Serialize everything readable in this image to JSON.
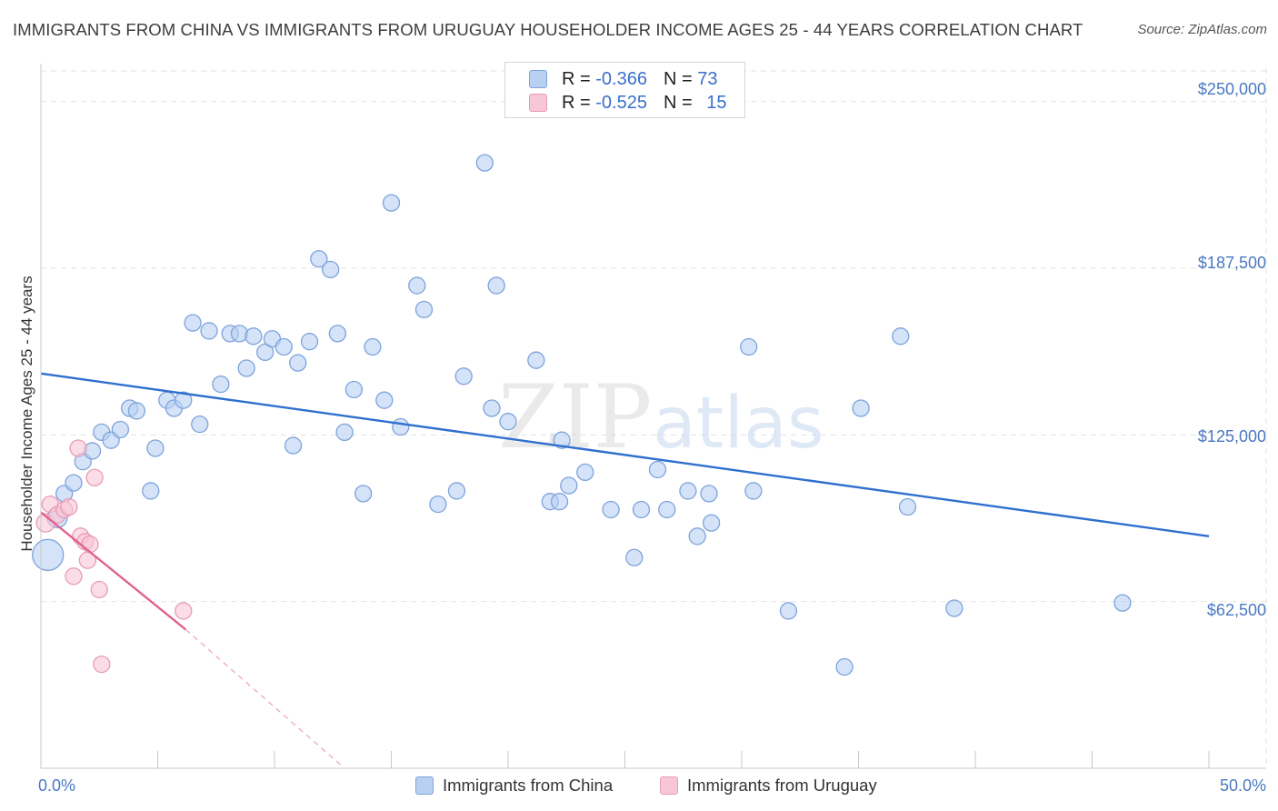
{
  "title": "IMMIGRANTS FROM CHINA VS IMMIGRANTS FROM URUGUAY HOUSEHOLDER INCOME AGES 25 - 44 YEARS CORRELATION CHART",
  "source": "Source: ZipAtlas.com",
  "watermark": {
    "zip": "ZIP",
    "atlas": "atlas"
  },
  "legend": {
    "china": {
      "r_label": "R =",
      "r_value": "-0.366",
      "n_label": "N =",
      "n_value": "73"
    },
    "uruguay": {
      "r_label": "R =",
      "r_value": "-0.525",
      "n_label": "N =",
      "n_value": "15"
    }
  },
  "bottom_legend": {
    "china": "Immigrants from China",
    "uruguay": "Immigrants from Uruguay"
  },
  "colors": {
    "china_fill": "#b8d0f2",
    "china_stroke": "#7ea3dc",
    "china_line": "#2f6fcf",
    "uruguay_fill": "#f8c7d7",
    "uruguay_stroke": "#e99bb6",
    "uruguay_line": "#e0628f",
    "tick_label": "#4a78c2",
    "grid": "#e2e2e2"
  },
  "chart_data": {
    "type": "scatter",
    "title": "IMMIGRANTS FROM CHINA VS IMMIGRANTS FROM URUGUAY HOUSEHOLDER INCOME AGES 25 - 44 YEARS CORRELATION CHART",
    "xlabel": "",
    "ylabel": "Householder Income Ages 25 - 44 years",
    "xlim": [
      0,
      50
    ],
    "ylim": [
      0,
      262500
    ],
    "x_tick_labels": [
      "0.0%",
      "50.0%"
    ],
    "y_ticks": [
      {
        "value": 62500,
        "label": "$62,500"
      },
      {
        "value": 125000,
        "label": "$125,000"
      },
      {
        "value": 187500,
        "label": "$187,500"
      },
      {
        "value": 250000,
        "label": "$250,000"
      }
    ],
    "grid": true,
    "legend_position": "top-center",
    "series": [
      {
        "name": "Immigrants from China",
        "r": -0.366,
        "n": 73,
        "trend": {
          "x0": 0,
          "y0": 148000,
          "x1": 50,
          "y1": 87000
        },
        "points": [
          {
            "x": 0.3,
            "y": 80000,
            "s": 17
          },
          {
            "x": 0.7,
            "y": 94000,
            "s": 11
          },
          {
            "x": 1.0,
            "y": 103000
          },
          {
            "x": 1.4,
            "y": 107000
          },
          {
            "x": 1.8,
            "y": 115000
          },
          {
            "x": 2.2,
            "y": 119000
          },
          {
            "x": 2.6,
            "y": 126000
          },
          {
            "x": 3.0,
            "y": 123000
          },
          {
            "x": 3.4,
            "y": 127000
          },
          {
            "x": 3.8,
            "y": 135000
          },
          {
            "x": 4.1,
            "y": 134000
          },
          {
            "x": 4.7,
            "y": 104000
          },
          {
            "x": 4.9,
            "y": 120000
          },
          {
            "x": 5.4,
            "y": 138000
          },
          {
            "x": 5.7,
            "y": 135000
          },
          {
            "x": 6.1,
            "y": 138000
          },
          {
            "x": 6.5,
            "y": 167000
          },
          {
            "x": 6.8,
            "y": 129000
          },
          {
            "x": 7.2,
            "y": 164000
          },
          {
            "x": 7.7,
            "y": 144000
          },
          {
            "x": 8.1,
            "y": 163000
          },
          {
            "x": 8.5,
            "y": 163000
          },
          {
            "x": 8.8,
            "y": 150000
          },
          {
            "x": 9.1,
            "y": 162000
          },
          {
            "x": 9.6,
            "y": 156000
          },
          {
            "x": 9.9,
            "y": 161000
          },
          {
            "x": 10.4,
            "y": 158000
          },
          {
            "x": 10.8,
            "y": 121000
          },
          {
            "x": 11.0,
            "y": 152000
          },
          {
            "x": 11.5,
            "y": 160000
          },
          {
            "x": 11.9,
            "y": 191000
          },
          {
            "x": 12.4,
            "y": 187000
          },
          {
            "x": 12.7,
            "y": 163000
          },
          {
            "x": 13.0,
            "y": 126000
          },
          {
            "x": 13.4,
            "y": 142000
          },
          {
            "x": 13.8,
            "y": 103000
          },
          {
            "x": 14.2,
            "y": 158000
          },
          {
            "x": 14.7,
            "y": 138000
          },
          {
            "x": 15.0,
            "y": 212000
          },
          {
            "x": 15.4,
            "y": 128000
          },
          {
            "x": 16.1,
            "y": 181000
          },
          {
            "x": 16.4,
            "y": 172000
          },
          {
            "x": 17.0,
            "y": 99000
          },
          {
            "x": 17.8,
            "y": 104000
          },
          {
            "x": 18.1,
            "y": 147000
          },
          {
            "x": 19.0,
            "y": 227000
          },
          {
            "x": 19.3,
            "y": 135000
          },
          {
            "x": 19.5,
            "y": 181000
          },
          {
            "x": 20.0,
            "y": 130000
          },
          {
            "x": 21.2,
            "y": 153000
          },
          {
            "x": 21.8,
            "y": 100000
          },
          {
            "x": 22.2,
            "y": 100000
          },
          {
            "x": 22.3,
            "y": 123000
          },
          {
            "x": 22.6,
            "y": 106000
          },
          {
            "x": 23.3,
            "y": 111000
          },
          {
            "x": 24.4,
            "y": 97000
          },
          {
            "x": 25.4,
            "y": 79000
          },
          {
            "x": 25.7,
            "y": 97000
          },
          {
            "x": 26.4,
            "y": 112000
          },
          {
            "x": 26.8,
            "y": 97000
          },
          {
            "x": 27.7,
            "y": 104000
          },
          {
            "x": 28.1,
            "y": 87000
          },
          {
            "x": 28.6,
            "y": 103000
          },
          {
            "x": 28.7,
            "y": 92000
          },
          {
            "x": 30.3,
            "y": 158000
          },
          {
            "x": 30.5,
            "y": 104000
          },
          {
            "x": 32.0,
            "y": 59000
          },
          {
            "x": 34.4,
            "y": 38000
          },
          {
            "x": 35.1,
            "y": 135000
          },
          {
            "x": 36.8,
            "y": 162000
          },
          {
            "x": 37.1,
            "y": 98000
          },
          {
            "x": 39.1,
            "y": 60000
          },
          {
            "x": 46.3,
            "y": 62000
          }
        ]
      },
      {
        "name": "Immigrants from Uruguay",
        "r": -0.525,
        "n": 15,
        "trend": {
          "x0": 0,
          "y0": 96000,
          "x1": 6.2,
          "y1": 52000,
          "dashed_to": {
            "x": 13,
            "y": 0
          }
        },
        "points": [
          {
            "x": 0.2,
            "y": 92000,
            "s": 10
          },
          {
            "x": 0.4,
            "y": 99000
          },
          {
            "x": 0.7,
            "y": 95000
          },
          {
            "x": 1.0,
            "y": 97000
          },
          {
            "x": 1.2,
            "y": 98000
          },
          {
            "x": 1.4,
            "y": 72000
          },
          {
            "x": 1.6,
            "y": 120000
          },
          {
            "x": 1.7,
            "y": 87000
          },
          {
            "x": 1.9,
            "y": 85000
          },
          {
            "x": 2.0,
            "y": 78000
          },
          {
            "x": 2.1,
            "y": 84000
          },
          {
            "x": 2.3,
            "y": 109000
          },
          {
            "x": 2.5,
            "y": 67000
          },
          {
            "x": 2.6,
            "y": 39000
          },
          {
            "x": 6.1,
            "y": 59000
          }
        ]
      }
    ]
  }
}
